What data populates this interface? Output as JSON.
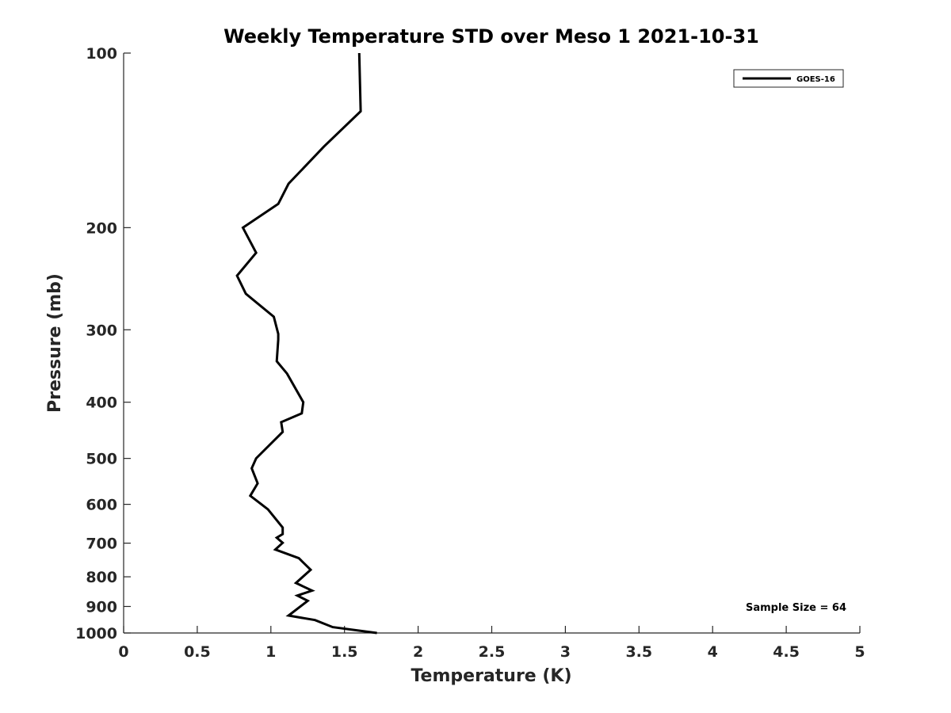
{
  "chart_data": {
    "type": "line",
    "title": "Weekly Temperature STD over Meso 1 2021-10-31",
    "xlabel": "Temperature (K)",
    "ylabel": "Pressure (mb)",
    "xlim": [
      0,
      5
    ],
    "ylim": [
      100,
      1000
    ],
    "y_scale": "log",
    "y_reversed": true,
    "grid": false,
    "legend_position": "top-right",
    "x_ticks": [
      0,
      0.5,
      1,
      1.5,
      2,
      2.5,
      3,
      3.5,
      4,
      4.5,
      5
    ],
    "x_tick_labels": [
      "0",
      "0.5",
      "1",
      "1.5",
      "2",
      "2.5",
      "3",
      "3.5",
      "4",
      "4.5",
      "5"
    ],
    "y_ticks": [
      100,
      200,
      300,
      400,
      500,
      600,
      700,
      800,
      900,
      1000
    ],
    "y_tick_labels": [
      "100",
      "200",
      "300",
      "400",
      "500",
      "600",
      "700",
      "800",
      "900",
      "1000"
    ],
    "series": [
      {
        "name": "GOES-16",
        "color": "#000000",
        "x": [
          1.6,
          1.61,
          1.36,
          1.12,
          1.05,
          0.81,
          0.9,
          0.77,
          0.83,
          1.02,
          1.05,
          1.05,
          1.04,
          1.11,
          1.22,
          1.21,
          1.07,
          1.08,
          0.9,
          0.87,
          0.91,
          0.86,
          0.98,
          1.08,
          1.08,
          1.04,
          1.08,
          1.03,
          1.19,
          1.27,
          1.17,
          1.28,
          1.18,
          1.25,
          1.12,
          1.3,
          1.42,
          1.72
        ],
        "y": [
          100,
          126,
          145,
          168,
          182,
          200,
          221,
          242,
          260,
          285,
          305,
          312,
          340,
          357,
          400,
          418,
          433,
          450,
          500,
          520,
          552,
          580,
          612,
          658,
          675,
          685,
          699,
          718,
          743,
          778,
          820,
          845,
          862,
          880,
          933,
          950,
          977,
          1000
        ]
      }
    ],
    "annotations": [
      "Sample Size = 64"
    ]
  }
}
